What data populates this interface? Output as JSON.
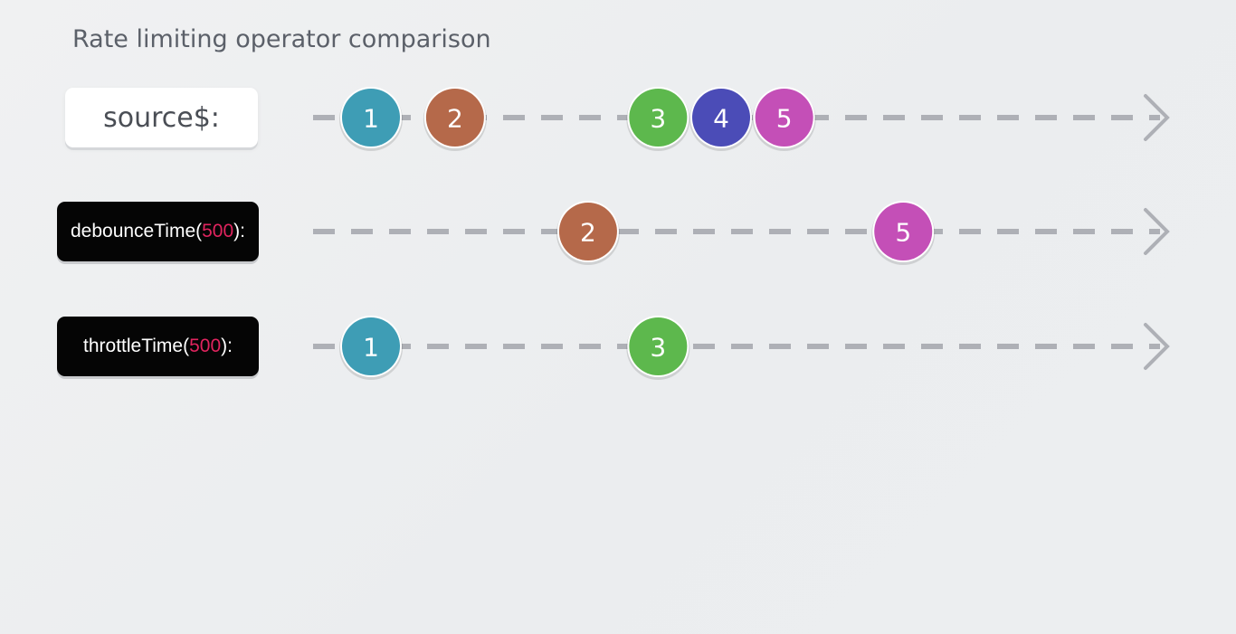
{
  "title": "Rate limiting operator comparison",
  "rows": [
    {
      "id": "source",
      "label": "source$:",
      "style": "white",
      "marbles": [
        {
          "value": "1",
          "color": "#3e9db5",
          "x": 1.0
        },
        {
          "value": "2",
          "color": "#b5694a",
          "x": 2.2
        },
        {
          "value": "3",
          "color": "#5db84d",
          "x": 5.1
        },
        {
          "value": "4",
          "color": "#4b4cb7",
          "x": 6.0
        },
        {
          "value": "5",
          "color": "#c44fb7",
          "x": 6.9
        }
      ]
    },
    {
      "id": "debounce",
      "label_pre": "debounceTime(",
      "label_arg": "500",
      "label_post": "):",
      "style": "black",
      "marbles": [
        {
          "value": "2",
          "color": "#b5694a",
          "x": 4.1
        },
        {
          "value": "5",
          "color": "#c44fb7",
          "x": 8.6
        }
      ]
    },
    {
      "id": "throttle",
      "label_pre": "throttleTime(",
      "label_arg": "500",
      "label_post": "):",
      "style": "black",
      "marbles": [
        {
          "value": "1",
          "color": "#3e9db5",
          "x": 1.0
        },
        {
          "value": "3",
          "color": "#5db84d",
          "x": 5.1
        }
      ]
    }
  ],
  "timeline": {
    "line_color": "#aeb0b6",
    "x_domain": [
      0,
      12
    ]
  }
}
